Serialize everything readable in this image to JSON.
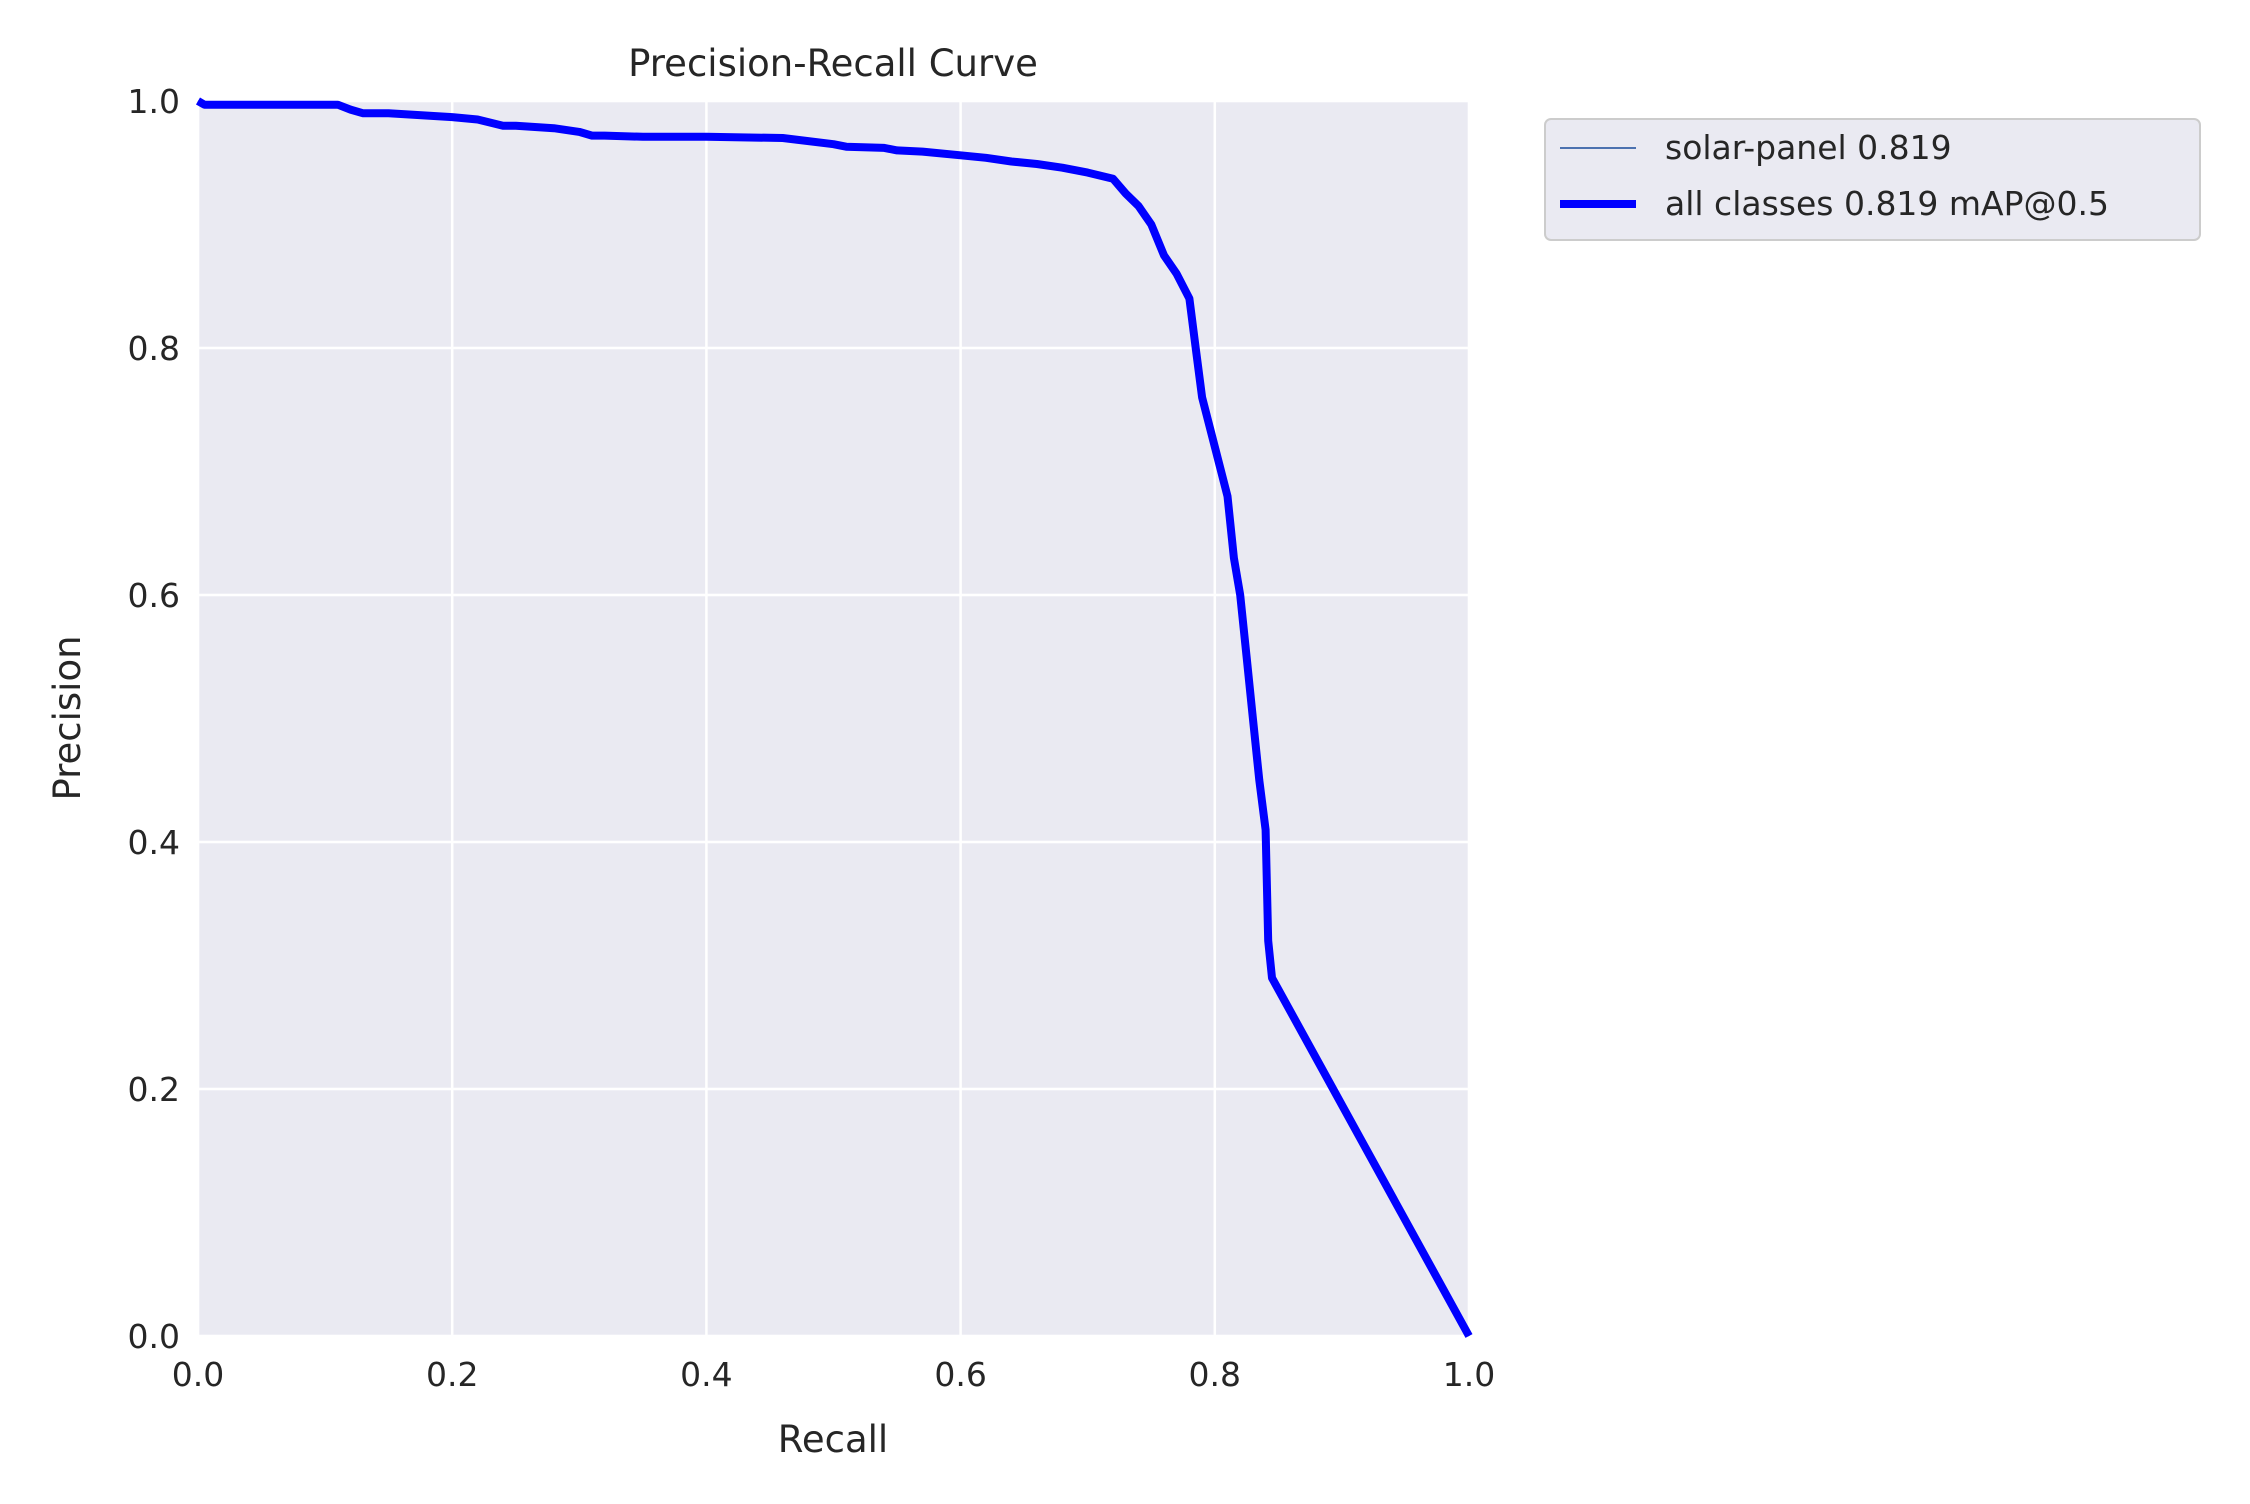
{
  "chart_data": {
    "type": "line",
    "title": "Precision-Recall Curve",
    "xlabel": "Recall",
    "ylabel": "Precision",
    "xlim": [
      0,
      1
    ],
    "ylim": [
      0,
      1
    ],
    "xticks": [
      "0.0",
      "0.2",
      "0.4",
      "0.6",
      "0.8",
      "1.0"
    ],
    "yticks": [
      "0.0",
      "0.2",
      "0.4",
      "0.6",
      "0.8",
      "1.0"
    ],
    "grid": true,
    "legend_position": "outside-top-right",
    "series": [
      {
        "name": "solar-panel 0.819",
        "color": "#4c72b0",
        "style": "thin",
        "x": [
          0.0,
          0.005,
          0.05,
          0.11,
          0.12,
          0.13,
          0.15,
          0.2,
          0.22,
          0.24,
          0.25,
          0.28,
          0.3,
          0.31,
          0.32,
          0.35,
          0.4,
          0.46,
          0.5,
          0.51,
          0.54,
          0.55,
          0.57,
          0.6,
          0.62,
          0.64,
          0.66,
          0.68,
          0.7,
          0.72,
          0.73,
          0.74,
          0.75,
          0.76,
          0.77,
          0.78,
          0.785,
          0.79,
          0.8,
          0.81,
          0.815,
          0.82,
          0.825,
          0.83,
          0.835,
          0.84,
          0.842,
          0.845,
          1.0
        ],
        "y": [
          1.0,
          0.997,
          0.997,
          0.997,
          0.993,
          0.99,
          0.99,
          0.987,
          0.985,
          0.98,
          0.98,
          0.978,
          0.975,
          0.972,
          0.972,
          0.971,
          0.971,
          0.97,
          0.965,
          0.963,
          0.962,
          0.96,
          0.959,
          0.956,
          0.954,
          0.951,
          0.949,
          0.946,
          0.942,
          0.937,
          0.925,
          0.915,
          0.9,
          0.875,
          0.86,
          0.84,
          0.8,
          0.76,
          0.72,
          0.68,
          0.63,
          0.6,
          0.55,
          0.5,
          0.45,
          0.41,
          0.32,
          0.29,
          0.0
        ]
      },
      {
        "name": "all classes 0.819 mAP@0.5",
        "color": "#0000ff",
        "style": "thick",
        "x": [
          0.0,
          0.005,
          0.05,
          0.11,
          0.12,
          0.13,
          0.15,
          0.2,
          0.22,
          0.24,
          0.25,
          0.28,
          0.3,
          0.31,
          0.32,
          0.35,
          0.4,
          0.46,
          0.5,
          0.51,
          0.54,
          0.55,
          0.57,
          0.6,
          0.62,
          0.64,
          0.66,
          0.68,
          0.7,
          0.72,
          0.73,
          0.74,
          0.75,
          0.76,
          0.77,
          0.78,
          0.785,
          0.79,
          0.8,
          0.81,
          0.815,
          0.82,
          0.825,
          0.83,
          0.835,
          0.84,
          0.842,
          0.845,
          1.0
        ],
        "y": [
          1.0,
          0.997,
          0.997,
          0.997,
          0.993,
          0.99,
          0.99,
          0.987,
          0.985,
          0.98,
          0.98,
          0.978,
          0.975,
          0.972,
          0.972,
          0.971,
          0.971,
          0.97,
          0.965,
          0.963,
          0.962,
          0.96,
          0.959,
          0.956,
          0.954,
          0.951,
          0.949,
          0.946,
          0.942,
          0.937,
          0.925,
          0.915,
          0.9,
          0.875,
          0.86,
          0.84,
          0.8,
          0.76,
          0.72,
          0.68,
          0.63,
          0.6,
          0.55,
          0.5,
          0.45,
          0.41,
          0.32,
          0.29,
          0.0
        ]
      }
    ]
  }
}
